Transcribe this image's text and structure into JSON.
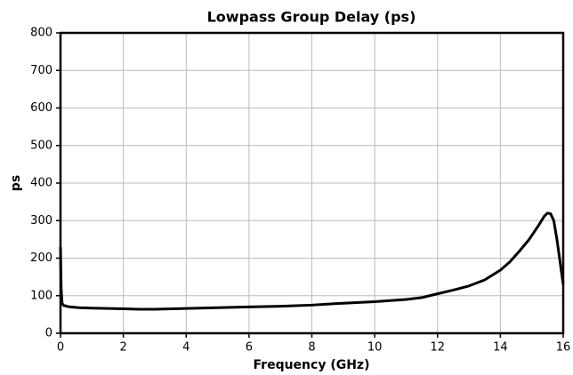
{
  "chart_data": {
    "type": "line",
    "title": "Lowpass Group Delay (ps)",
    "xlabel": "Frequency (GHz)",
    "ylabel": "ps",
    "x": [
      0,
      0.02,
      0.05,
      0.1,
      0.3,
      0.6,
      1,
      1.5,
      2,
      2.5,
      3,
      4,
      5,
      6,
      7,
      8,
      9,
      10,
      10.5,
      11,
      11.5,
      12,
      12.5,
      13,
      13.5,
      14,
      14.3,
      14.6,
      14.9,
      15.2,
      15.4,
      15.5,
      15.6,
      15.7,
      15.8,
      15.9,
      16
    ],
    "series": [
      {
        "color": "#000000",
        "values": [
          230,
          120,
          80,
          74,
          70,
          68,
          67,
          66,
          65,
          64,
          64,
          66,
          68,
          70,
          72,
          75,
          80,
          84,
          87,
          90,
          95,
          105,
          115,
          126,
          142,
          168,
          190,
          218,
          248,
          285,
          312,
          320,
          318,
          300,
          250,
          190,
          130
        ]
      }
    ],
    "xlim": [
      0,
      16
    ],
    "xticks": [
      0,
      2,
      4,
      6,
      8,
      10,
      12,
      14,
      16
    ],
    "ylim": [
      0,
      800
    ],
    "yticks": [
      0,
      100,
      200,
      300,
      400,
      500,
      600,
      700,
      800
    ],
    "grid": true
  }
}
